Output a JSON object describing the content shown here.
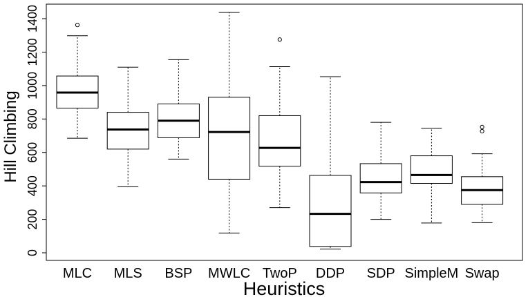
{
  "chart_data": {
    "type": "box",
    "title": "",
    "xlabel": "Heuristics",
    "ylabel": "Hill Climbing",
    "ylim": [
      -40,
      1440
    ],
    "yticks": [
      0,
      200,
      400,
      600,
      800,
      1000,
      1200,
      1400
    ],
    "grid": false,
    "legend": "none",
    "categories": [
      "MLC",
      "MLS",
      "BSP",
      "MWLC",
      "TwoP",
      "DDP",
      "SDP",
      "SimpleM",
      "Swap"
    ],
    "boxes": [
      {
        "category": "MLC",
        "whisker_low": 685,
        "q1": 865,
        "median": 958,
        "q3": 1057,
        "whisker_high": 1298,
        "outliers": [
          1362
        ]
      },
      {
        "category": "MLS",
        "whisker_low": 395,
        "q1": 620,
        "median": 737,
        "q3": 840,
        "whisker_high": 1110,
        "outliers": []
      },
      {
        "category": "BSP",
        "whisker_low": 560,
        "q1": 688,
        "median": 790,
        "q3": 890,
        "whisker_high": 1155,
        "outliers": []
      },
      {
        "category": "MWLC",
        "whisker_low": 118,
        "q1": 440,
        "median": 722,
        "q3": 930,
        "whisker_high": 1437,
        "outliers": []
      },
      {
        "category": "TwoP",
        "whisker_low": 270,
        "q1": 518,
        "median": 627,
        "q3": 820,
        "whisker_high": 1113,
        "outliers": [
          1275
        ]
      },
      {
        "category": "DDP",
        "whisker_low": 22,
        "q1": 38,
        "median": 233,
        "q3": 463,
        "whisker_high": 1053,
        "outliers": []
      },
      {
        "category": "SDP",
        "whisker_low": 200,
        "q1": 358,
        "median": 423,
        "q3": 533,
        "whisker_high": 780,
        "outliers": []
      },
      {
        "category": "SimpleM",
        "whisker_low": 178,
        "q1": 415,
        "median": 465,
        "q3": 580,
        "whisker_high": 745,
        "outliers": []
      },
      {
        "category": "Swap",
        "whisker_low": 180,
        "q1": 290,
        "median": 375,
        "q3": 455,
        "whisker_high": 592,
        "outliers": [
          727,
          752
        ]
      }
    ]
  }
}
